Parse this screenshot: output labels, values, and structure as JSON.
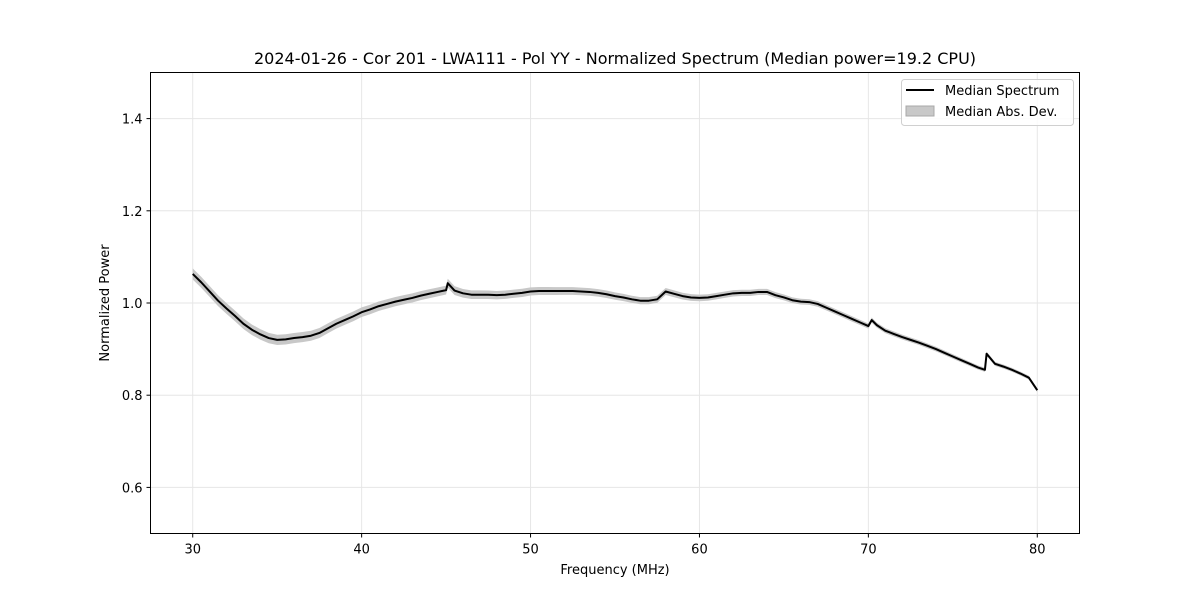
{
  "chart_data": {
    "type": "line",
    "title": "2024-01-26 - Cor 201 - LWA111 - Pol YY - Normalized Spectrum (Median power=19.2 CPU)",
    "xlabel": "Frequency (MHz)",
    "ylabel": "Normalized Power",
    "xlim": [
      27.5,
      82.5
    ],
    "ylim": [
      0.5,
      1.5
    ],
    "xticks": [
      30,
      40,
      50,
      60,
      70,
      80
    ],
    "xtick_labels": [
      "30",
      "40",
      "50",
      "60",
      "70",
      "80"
    ],
    "yticks": [
      0.6,
      0.8,
      1.0,
      1.2,
      1.4
    ],
    "ytick_labels": [
      "0.6",
      "0.8",
      "1.0",
      "1.2",
      "1.4"
    ],
    "grid": true,
    "legend": {
      "placement": "top-right",
      "entries": [
        {
          "label": "Median Spectrum",
          "style": "line",
          "color": "#000000"
        },
        {
          "label": "Median Abs. Dev.",
          "style": "band",
          "color": "#c8c8c8"
        }
      ]
    },
    "series": [
      {
        "name": "Median Spectrum",
        "color": "#000000",
        "x": [
          30,
          30.5,
          31,
          31.5,
          32,
          32.5,
          33,
          33.5,
          34,
          34.5,
          35,
          35.5,
          36,
          36.5,
          37,
          37.5,
          38,
          38.5,
          39,
          39.5,
          40,
          40.5,
          41,
          41.5,
          42,
          42.5,
          43,
          43.5,
          44,
          44.5,
          45,
          45.1,
          45.5,
          46,
          46.5,
          47,
          47.5,
          48,
          48.5,
          49,
          49.5,
          50,
          50.5,
          51,
          51.5,
          52,
          52.5,
          53,
          53.5,
          54,
          54.5,
          55,
          55.5,
          56,
          56.5,
          57,
          57.5,
          58,
          58.5,
          59,
          59.5,
          60,
          60.5,
          61,
          61.5,
          62,
          62.5,
          63,
          63.5,
          64,
          64.5,
          65,
          65.5,
          66,
          66.5,
          67,
          67.5,
          68,
          68.5,
          69,
          69.5,
          70,
          70.2,
          70.5,
          71,
          71.5,
          72,
          72.5,
          73,
          73.5,
          74,
          74.5,
          75,
          75.5,
          76,
          76.5,
          76.9,
          77,
          77.5,
          78,
          78.5,
          79,
          79.5,
          80
        ],
        "values": [
          1.063,
          1.045,
          1.025,
          1.005,
          0.988,
          0.972,
          0.955,
          0.942,
          0.932,
          0.924,
          0.92,
          0.921,
          0.924,
          0.926,
          0.929,
          0.935,
          0.945,
          0.955,
          0.963,
          0.971,
          0.98,
          0.986,
          0.993,
          0.998,
          1.003,
          1.007,
          1.011,
          1.016,
          1.02,
          1.024,
          1.028,
          1.043,
          1.027,
          1.021,
          1.018,
          1.018,
          1.018,
          1.017,
          1.018,
          1.02,
          1.022,
          1.025,
          1.026,
          1.026,
          1.026,
          1.026,
          1.026,
          1.025,
          1.024,
          1.022,
          1.019,
          1.015,
          1.012,
          1.008,
          1.005,
          1.005,
          1.008,
          1.025,
          1.02,
          1.015,
          1.012,
          1.011,
          1.012,
          1.015,
          1.018,
          1.021,
          1.022,
          1.022,
          1.024,
          1.024,
          1.017,
          1.012,
          1.006,
          1.003,
          1.002,
          0.998,
          0.99,
          0.982,
          0.974,
          0.966,
          0.958,
          0.95,
          0.963,
          0.952,
          0.94,
          0.933,
          0.926,
          0.92,
          0.914,
          0.907,
          0.9,
          0.892,
          0.884,
          0.876,
          0.868,
          0.86,
          0.855,
          0.89,
          0.868,
          0.862,
          0.855,
          0.847,
          0.838,
          0.811
        ]
      },
      {
        "name": "Median Abs. Dev.",
        "type": "band",
        "color": "#c8c8c8",
        "halfwidth_start": 0.012,
        "halfwidth_end": 0.004
      }
    ]
  }
}
